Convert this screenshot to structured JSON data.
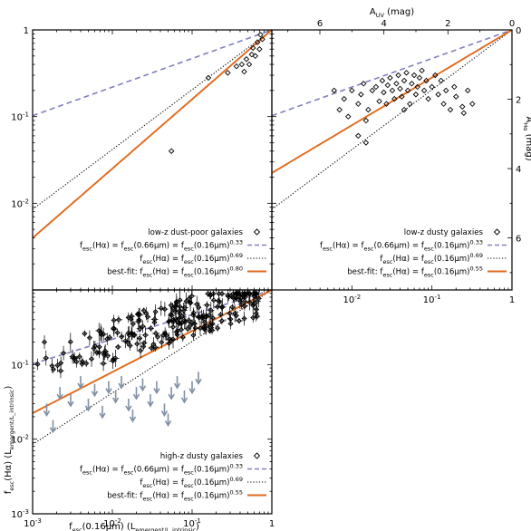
{
  "colors": {
    "dashed": "#8080c0",
    "dotted": "#000000",
    "fit": "#e06a1c",
    "upper_limits": "#8090a4"
  },
  "chart_data": [
    {
      "panel": "top-left",
      "type": "scatter",
      "xlabel": "",
      "ylabel": "",
      "xscale": "log",
      "yscale": "log",
      "xlim": [
        0.001,
        1
      ],
      "ylim": [
        0.001,
        1
      ],
      "yticks": [
        "10^-2",
        "10^-1",
        "1"
      ],
      "legend": {
        "placement": "bottom-right",
        "sample_label": "low-z dust-poor galaxies",
        "dashed_label": "f_esc(Hα) = f_esc(0.66μm) = f_esc(0.16μm)^0.33",
        "dotted_label": "f_esc(Hα) = f_esc(0.16μm)^0.69",
        "fit_label": "best-fit: f_esc(Hα) = f_esc(0.16μm)^0.80"
      },
      "lines": {
        "dashed_exponent": 0.33,
        "dotted_exponent": 0.69,
        "fit_exponent": 0.8
      },
      "points": [
        [
          0.16,
          0.28
        ],
        [
          0.28,
          0.32
        ],
        [
          0.36,
          0.38
        ],
        [
          0.42,
          0.4
        ],
        [
          0.45,
          0.33
        ],
        [
          0.52,
          0.4
        ],
        [
          0.56,
          0.52
        ],
        [
          0.62,
          0.5
        ],
        [
          0.58,
          0.62
        ],
        [
          0.7,
          0.6
        ],
        [
          0.66,
          0.72
        ],
        [
          0.76,
          0.78
        ],
        [
          0.72,
          0.88
        ],
        [
          0.48,
          0.46
        ],
        [
          0.055,
          0.04
        ]
      ]
    },
    {
      "panel": "top-right",
      "type": "scatter",
      "xlabel": "",
      "ylabel": "",
      "xscale": "log",
      "yscale": "log",
      "xlim": [
        0.001,
        1
      ],
      "ylim": [
        0.001,
        1
      ],
      "xticks": [
        "10^-2",
        "10^-1",
        "1"
      ],
      "top_axis": {
        "label": "A_UV (mag)",
        "ticks": [
          "6",
          "4",
          "2",
          "0"
        ]
      },
      "right_axis": {
        "label": "A_Hα (mag)",
        "ticks": [
          "0",
          "2",
          "4",
          "6"
        ]
      },
      "legend": {
        "placement": "bottom-right",
        "sample_label": "low-z dusty galaxies",
        "dashed_label": "f_esc(Hα) = f_esc(0.66μm) = f_esc(0.16μm)^0.33",
        "dotted_label": "f_esc(Hα) = f_esc(0.16μm)^0.69",
        "fit_label": "best-fit: f_esc(Hα) = f_esc(0.16μm)^0.55"
      },
      "lines": {
        "dashed_exponent": 0.33,
        "dotted_exponent": 0.69,
        "fit_exponent": 0.55
      },
      "points": [
        [
          0.006,
          0.2
        ],
        [
          0.007,
          0.12
        ],
        [
          0.008,
          0.16
        ],
        [
          0.009,
          0.1
        ],
        [
          0.01,
          0.2
        ],
        [
          0.012,
          0.14
        ],
        [
          0.013,
          0.18
        ],
        [
          0.014,
          0.24
        ],
        [
          0.015,
          0.09
        ],
        [
          0.016,
          0.12
        ],
        [
          0.018,
          0.2
        ],
        [
          0.02,
          0.22
        ],
        [
          0.022,
          0.15
        ],
        [
          0.024,
          0.26
        ],
        [
          0.025,
          0.19
        ],
        [
          0.027,
          0.14
        ],
        [
          0.028,
          0.23
        ],
        [
          0.03,
          0.28
        ],
        [
          0.032,
          0.2
        ],
        [
          0.034,
          0.16
        ],
        [
          0.036,
          0.24
        ],
        [
          0.038,
          0.3
        ],
        [
          0.04,
          0.21
        ],
        [
          0.042,
          0.17
        ],
        [
          0.045,
          0.26
        ],
        [
          0.048,
          0.32
        ],
        [
          0.05,
          0.2
        ],
        [
          0.053,
          0.14
        ],
        [
          0.056,
          0.24
        ],
        [
          0.06,
          0.3
        ],
        [
          0.063,
          0.18
        ],
        [
          0.066,
          0.22
        ],
        [
          0.07,
          0.28
        ],
        [
          0.075,
          0.34
        ],
        [
          0.08,
          0.2
        ],
        [
          0.085,
          0.26
        ],
        [
          0.09,
          0.16
        ],
        [
          0.1,
          0.22
        ],
        [
          0.11,
          0.3
        ],
        [
          0.12,
          0.18
        ],
        [
          0.13,
          0.26
        ],
        [
          0.14,
          0.14
        ],
        [
          0.15,
          0.2
        ],
        [
          0.17,
          0.12
        ],
        [
          0.2,
          0.17
        ],
        [
          0.24,
          0.13
        ],
        [
          0.28,
          0.2
        ],
        [
          0.32,
          0.14
        ],
        [
          0.25,
          0.11
        ],
        [
          0.19,
          0.22
        ],
        [
          0.015,
          0.05
        ],
        [
          0.012,
          0.06
        ],
        [
          0.045,
          0.12
        ]
      ]
    },
    {
      "panel": "bottom-left",
      "type": "scatter",
      "xlabel": "f_esc(0.16μm) (L_emergent/L_intrinsic)",
      "ylabel": "f_esc(Hα) (L_emergent/L_intrinsic)",
      "xscale": "log",
      "yscale": "log",
      "xlim": [
        0.001,
        1
      ],
      "ylim": [
        0.001,
        1
      ],
      "xticks": [
        "10^-3",
        "10^-2",
        "10^-1",
        "1"
      ],
      "yticks": [
        "10^-3",
        "10^-2",
        "10^-1"
      ],
      "legend": {
        "placement": "bottom-right",
        "sample_label": "high-z dusty galaxies",
        "dashed_label": "f_esc(Hα) = f_esc(0.66μm) = f_esc(0.16μm)^0.33",
        "dotted_label": "f_esc(Hα) = f_esc(0.16μm)^0.69",
        "fit_label": "best-fit: f_esc(Hα) = f_esc(0.16μm)^0.55"
      },
      "lines": {
        "dashed_exponent": 0.33,
        "dotted_exponent": 0.69,
        "fit_exponent": 0.55
      },
      "upper_limits": [
        [
          0.0015,
          0.03
        ],
        [
          0.0018,
          0.018
        ],
        [
          0.0022,
          0.05
        ],
        [
          0.003,
          0.04
        ],
        [
          0.004,
          0.07
        ],
        [
          0.005,
          0.035
        ],
        [
          0.006,
          0.055
        ],
        [
          0.0075,
          0.028
        ],
        [
          0.009,
          0.06
        ],
        [
          0.011,
          0.045
        ],
        [
          0.013,
          0.07
        ],
        [
          0.016,
          0.035
        ],
        [
          0.02,
          0.05
        ],
        [
          0.024,
          0.065
        ],
        [
          0.03,
          0.04
        ],
        [
          0.036,
          0.06
        ],
        [
          0.045,
          0.03
        ],
        [
          0.055,
          0.05
        ],
        [
          0.065,
          0.07
        ],
        [
          0.08,
          0.045
        ],
        [
          0.1,
          0.06
        ],
        [
          0.12,
          0.08
        ],
        [
          0.05,
          0.022
        ],
        [
          0.018,
          0.025
        ]
      ]
    }
  ]
}
